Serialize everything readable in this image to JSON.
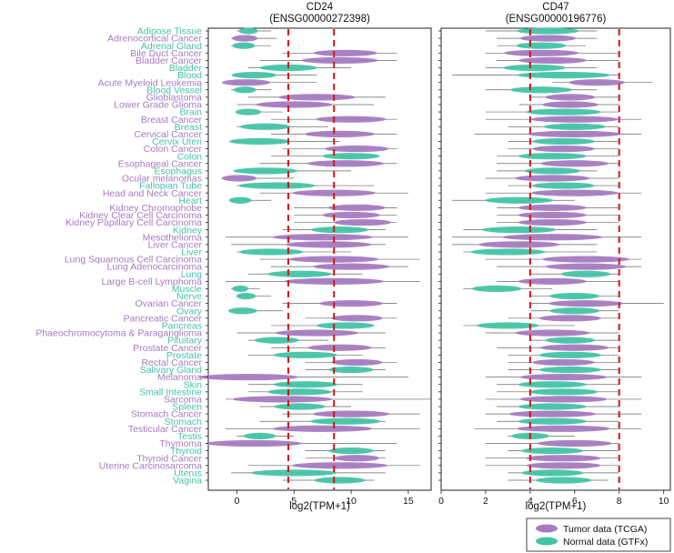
{
  "colors": {
    "tumor": "#a77bc1",
    "normal": "#44c4a6",
    "refline": "#dd1111",
    "whisker": "#333333"
  },
  "chart_data": {
    "type": "violin",
    "categories": [
      {
        "name": "Adipose Tissue",
        "kind": "normal"
      },
      {
        "name": "Adrenocortical Cancer",
        "kind": "tumor"
      },
      {
        "name": "Adrenal Gland",
        "kind": "normal"
      },
      {
        "name": "Bile Duct Cancer",
        "kind": "tumor"
      },
      {
        "name": "Bladder Cancer",
        "kind": "tumor"
      },
      {
        "name": "Bladder",
        "kind": "normal"
      },
      {
        "name": "Blood",
        "kind": "normal"
      },
      {
        "name": "Acute Myeloid Leukemia",
        "kind": "tumor"
      },
      {
        "name": "Blood Vessel",
        "kind": "normal"
      },
      {
        "name": "Glioblastoma",
        "kind": "tumor"
      },
      {
        "name": "Lower Grade Glioma",
        "kind": "tumor"
      },
      {
        "name": "Brain",
        "kind": "normal"
      },
      {
        "name": "Breast Cancer",
        "kind": "tumor"
      },
      {
        "name": "Breast",
        "kind": "normal"
      },
      {
        "name": "Cervical Cancer",
        "kind": "tumor"
      },
      {
        "name": "Cervix Uteri",
        "kind": "normal"
      },
      {
        "name": "Colon Cancer",
        "kind": "tumor"
      },
      {
        "name": "Colon",
        "kind": "normal"
      },
      {
        "name": "Esophageal Cancer",
        "kind": "tumor"
      },
      {
        "name": "Esophagus",
        "kind": "normal"
      },
      {
        "name": "Ocular melanomas",
        "kind": "tumor"
      },
      {
        "name": "Fallopian Tube",
        "kind": "normal"
      },
      {
        "name": "Head and Neck Cancer",
        "kind": "tumor"
      },
      {
        "name": "Heart",
        "kind": "normal"
      },
      {
        "name": "Kidney Chromophobe",
        "kind": "tumor"
      },
      {
        "name": "Kidney Clear Cell Carcinoma",
        "kind": "tumor"
      },
      {
        "name": "Kidney Papillary Cell Carcinoma",
        "kind": "tumor"
      },
      {
        "name": "Kidney",
        "kind": "normal"
      },
      {
        "name": "Mesothelioma",
        "kind": "tumor"
      },
      {
        "name": "Liver Cancer",
        "kind": "tumor"
      },
      {
        "name": "Liver",
        "kind": "normal"
      },
      {
        "name": "Lung Squamous Cell Carcinoma",
        "kind": "tumor"
      },
      {
        "name": "Lung Adenocarcinoma",
        "kind": "tumor"
      },
      {
        "name": "Lung",
        "kind": "normal"
      },
      {
        "name": "Large B-cell Lymphoma",
        "kind": "tumor"
      },
      {
        "name": "Muscle",
        "kind": "normal"
      },
      {
        "name": "Nerve",
        "kind": "normal"
      },
      {
        "name": "Ovarian Cancer",
        "kind": "tumor"
      },
      {
        "name": "Ovary",
        "kind": "normal"
      },
      {
        "name": "Pancreatic Cancer",
        "kind": "tumor"
      },
      {
        "name": "Pancreas",
        "kind": "normal"
      },
      {
        "name": "Phaeochromocytoma & Paraganglioma",
        "kind": "tumor"
      },
      {
        "name": "Pituitary",
        "kind": "normal"
      },
      {
        "name": "Prostate Cancer",
        "kind": "tumor"
      },
      {
        "name": "Prostate",
        "kind": "normal"
      },
      {
        "name": "Rectal Cancer",
        "kind": "tumor"
      },
      {
        "name": "Salivary Gland",
        "kind": "normal"
      },
      {
        "name": "Melanoma",
        "kind": "tumor"
      },
      {
        "name": "Skin",
        "kind": "normal"
      },
      {
        "name": "Small Intestine",
        "kind": "normal"
      },
      {
        "name": "Sarcoma",
        "kind": "tumor"
      },
      {
        "name": "Spleen",
        "kind": "normal"
      },
      {
        "name": "Stomach Cancer",
        "kind": "tumor"
      },
      {
        "name": "Stomach",
        "kind": "normal"
      },
      {
        "name": "Testicular Cancer",
        "kind": "tumor"
      },
      {
        "name": "Testis",
        "kind": "normal"
      },
      {
        "name": "Thymoma",
        "kind": "tumor"
      },
      {
        "name": "Thyroid",
        "kind": "normal"
      },
      {
        "name": "Thyroid Cancer",
        "kind": "tumor"
      },
      {
        "name": "Uterine Carcinosarcoma",
        "kind": "tumor"
      },
      {
        "name": "Uterus",
        "kind": "normal"
      },
      {
        "name": "Vagina",
        "kind": "normal"
      }
    ],
    "panels": [
      {
        "title_line1": "CD24",
        "title_line2": "(ENSG00000272398)",
        "xlabel": "log2(TPM+1)",
        "xlim": [
          -2.5,
          17
        ],
        "xticks": [
          0,
          5,
          10,
          15
        ],
        "xtick_labels": [
          "0",
          "5",
          "10",
          "15"
        ],
        "reference_lines": [
          4.5,
          8.5
        ],
        "medians": [
          1.0,
          0.7,
          0.6,
          9.5,
          9.0,
          4.5,
          1.5,
          0.8,
          0.7,
          7.0,
          5.0,
          1.0,
          10.0,
          2.5,
          9.0,
          2.0,
          10.5,
          10.0,
          9.5,
          2.5,
          0.2,
          3.5,
          8.5,
          0.3,
          10.5,
          10.0,
          11.0,
          9.0,
          7.5,
          8.0,
          3.0,
          8.5,
          10.0,
          5.5,
          8.5,
          0.3,
          0.8,
          10.0,
          0.5,
          10.5,
          9.5,
          7.0,
          3.5,
          9.0,
          6.0,
          10.5,
          10.0,
          1.0,
          6.0,
          5.5,
          4.0,
          5.5,
          10.0,
          9.5,
          7.5,
          2.0,
          1.5,
          10.0,
          10.5,
          9.0,
          5.0,
          9.0
        ],
        "ranges": [
          [
            0,
            3
          ],
          [
            -0.5,
            3.5
          ],
          [
            -0.5,
            3
          ],
          [
            4,
            14
          ],
          [
            2,
            14
          ],
          [
            1,
            10
          ],
          [
            0,
            7
          ],
          [
            -0.5,
            7
          ],
          [
            -0.5,
            3
          ],
          [
            1,
            13
          ],
          [
            0,
            12
          ],
          [
            0,
            4
          ],
          [
            3,
            14
          ],
          [
            0,
            8
          ],
          [
            3,
            14
          ],
          [
            -0.5,
            9
          ],
          [
            4,
            14
          ],
          [
            3,
            12
          ],
          [
            2,
            14
          ],
          [
            0,
            10
          ],
          [
            -0.5,
            5
          ],
          [
            0,
            12
          ],
          [
            2,
            15
          ],
          [
            -0.5,
            3
          ],
          [
            5,
            14
          ],
          [
            5,
            14
          ],
          [
            5,
            14
          ],
          [
            4,
            13
          ],
          [
            -1,
            15
          ],
          [
            -0.5,
            13
          ],
          [
            0,
            10
          ],
          [
            2,
            16
          ],
          [
            3,
            15
          ],
          [
            1,
            11
          ],
          [
            -1,
            16
          ],
          [
            -0.5,
            2
          ],
          [
            0,
            3
          ],
          [
            4,
            14
          ],
          [
            -0.5,
            4
          ],
          [
            6,
            14
          ],
          [
            3,
            12
          ],
          [
            0,
            13
          ],
          [
            1,
            8
          ],
          [
            3,
            13
          ],
          [
            1,
            11
          ],
          [
            6,
            14
          ],
          [
            6,
            13
          ],
          [
            -1,
            15
          ],
          [
            1,
            11
          ],
          [
            1,
            11
          ],
          [
            -1,
            17
          ],
          [
            2,
            10
          ],
          [
            4,
            16
          ],
          [
            2,
            13
          ],
          [
            -1,
            16
          ],
          [
            0,
            5
          ],
          [
            -1,
            14
          ],
          [
            6,
            13
          ],
          [
            6,
            13
          ],
          [
            1,
            16
          ],
          [
            -0.5,
            13
          ],
          [
            4,
            12
          ]
        ]
      },
      {
        "title_line1": "CD47",
        "title_line2": "(ENSG00000196776)",
        "xlabel": "log2(TPM+1)",
        "xlim": [
          0,
          10.3
        ],
        "xticks": [
          0,
          2,
          4,
          6,
          8,
          10
        ],
        "xtick_labels": [
          "0",
          "2",
          "4",
          "6",
          "8",
          "10"
        ],
        "reference_lines": [
          4.0,
          8.0
        ],
        "medians": [
          4.8,
          4.8,
          4.5,
          4.5,
          5.0,
          4.2,
          5.5,
          7.0,
          4.5,
          5.8,
          5.8,
          5.5,
          6.0,
          6.0,
          6.0,
          5.5,
          5.5,
          5.0,
          6.0,
          5.0,
          5.0,
          5.5,
          6.0,
          3.5,
          5.0,
          5.0,
          5.0,
          3.5,
          5.0,
          3.5,
          3.0,
          6.5,
          6.5,
          6.5,
          5.0,
          2.5,
          6.0,
          6.5,
          6.0,
          5.8,
          3.0,
          5.0,
          5.8,
          6.0,
          5.8,
          5.5,
          5.8,
          5.5,
          5.0,
          5.5,
          5.5,
          5.0,
          5.0,
          5.0,
          5.5,
          4.0,
          6.0,
          5.0,
          5.5,
          5.5,
          5.0,
          5.5
        ],
        "ranges": [
          [
            2,
            7
          ],
          [
            2.5,
            7
          ],
          [
            2.5,
            6.5
          ],
          [
            2,
            8
          ],
          [
            2.5,
            8
          ],
          [
            2,
            7
          ],
          [
            0.5,
            8
          ],
          [
            5,
            9.5
          ],
          [
            2,
            7
          ],
          [
            4,
            8
          ],
          [
            3.5,
            8
          ],
          [
            2,
            8
          ],
          [
            2,
            9
          ],
          [
            3,
            8
          ],
          [
            1.5,
            9
          ],
          [
            3,
            8
          ],
          [
            3,
            8
          ],
          [
            2.5,
            8
          ],
          [
            2.5,
            8
          ],
          [
            2.5,
            7
          ],
          [
            2,
            8
          ],
          [
            3,
            8
          ],
          [
            2,
            9
          ],
          [
            0.5,
            6
          ],
          [
            2.5,
            8
          ],
          [
            2.5,
            8
          ],
          [
            2.5,
            8
          ],
          [
            1,
            7
          ],
          [
            0.5,
            9
          ],
          [
            0.5,
            7
          ],
          [
            1,
            7
          ],
          [
            2,
            9
          ],
          [
            2.5,
            9
          ],
          [
            4,
            8
          ],
          [
            2.5,
            8
          ],
          [
            1,
            5
          ],
          [
            4,
            8
          ],
          [
            4,
            10
          ],
          [
            4,
            8
          ],
          [
            3,
            8
          ],
          [
            1,
            6
          ],
          [
            2,
            8
          ],
          [
            4,
            8
          ],
          [
            2.5,
            8
          ],
          [
            3,
            8
          ],
          [
            3,
            8
          ],
          [
            3,
            8
          ],
          [
            2,
            9
          ],
          [
            2.5,
            8
          ],
          [
            2.5,
            8
          ],
          [
            2,
            9
          ],
          [
            2.5,
            8
          ],
          [
            2,
            9
          ],
          [
            2.5,
            8
          ],
          [
            1.5,
            9
          ],
          [
            3,
            6
          ],
          [
            2,
            8
          ],
          [
            3,
            8
          ],
          [
            2,
            8
          ],
          [
            2,
            8
          ],
          [
            3,
            8
          ],
          [
            3,
            7.5
          ]
        ]
      }
    ],
    "legend": {
      "position": "bottom-right",
      "entries": [
        {
          "label": "Tumor data (TCGA)",
          "kind": "tumor"
        },
        {
          "label": "Normal data (GTFx)",
          "kind": "normal"
        }
      ]
    }
  }
}
